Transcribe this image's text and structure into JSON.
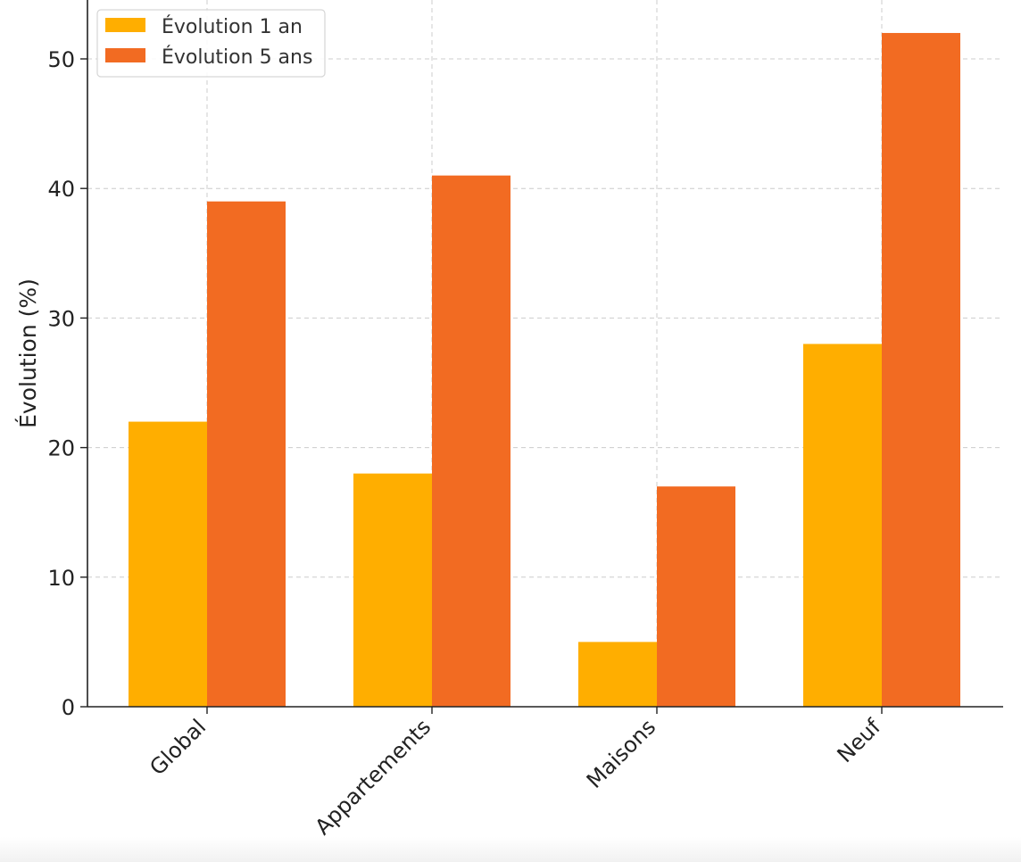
{
  "chart_data": {
    "type": "bar",
    "categories": [
      "Global",
      "Appartements",
      "Maisons",
      "Neuf"
    ],
    "series": [
      {
        "name": "Évolution 1 an",
        "values": [
          22,
          18,
          5,
          28
        ],
        "color": "#FFAE00"
      },
      {
        "name": "Évolution 5 ans",
        "values": [
          39,
          41,
          17,
          52
        ],
        "color": "#F26B22"
      }
    ],
    "ylabel": "Évolution (%)",
    "xlabel": "",
    "title": "",
    "ylim": [
      0,
      55
    ],
    "yticks": [
      0,
      10,
      20,
      30,
      40,
      50
    ],
    "grid": true,
    "legend_position": "top-left"
  }
}
